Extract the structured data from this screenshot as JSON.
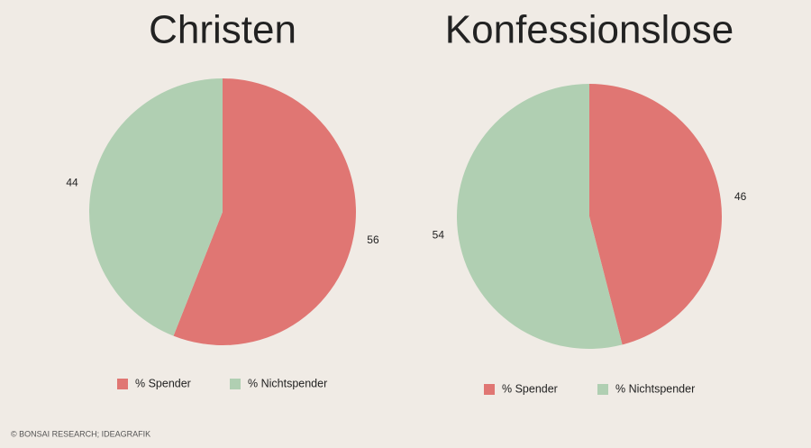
{
  "chart_data": [
    {
      "type": "pie",
      "title": "Christen",
      "categories": [
        "% Spender",
        "% Nichtspender"
      ],
      "values": [
        56,
        44
      ],
      "colors": [
        "#e07673",
        "#b0cfb2"
      ]
    },
    {
      "type": "pie",
      "title": "Konfessionslose",
      "categories": [
        "% Spender",
        "% Nichtspender"
      ],
      "values": [
        46,
        54
      ],
      "colors": [
        "#e07673",
        "#b0cfb2"
      ]
    }
  ],
  "source": "© BONSAI RESEARCH; IDEAGRAFIK"
}
